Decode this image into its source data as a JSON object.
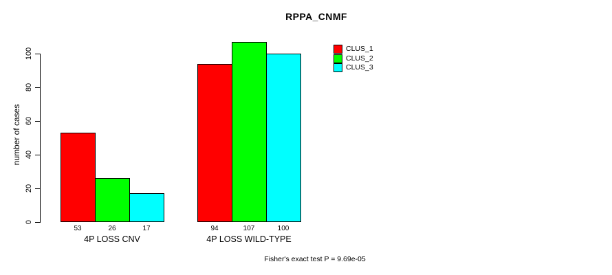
{
  "chart_data": {
    "type": "bar",
    "title": "RPPA_CNMF",
    "ylabel": "number of cases",
    "xlabel": "",
    "categories": [
      "4P LOSS CNV",
      "4P LOSS WILD-TYPE"
    ],
    "series": [
      {
        "name": "CLUS_1",
        "color": "#ff0000",
        "values": [
          53,
          94
        ]
      },
      {
        "name": "CLUS_2",
        "color": "#00ff00",
        "values": [
          26,
          107
        ]
      },
      {
        "name": "CLUS_3",
        "color": "#00ffff",
        "values": [
          17,
          100
        ]
      }
    ],
    "y_ticks": [
      0,
      20,
      40,
      60,
      80,
      100
    ],
    "ylim": [
      0,
      107
    ],
    "grid": false,
    "bar_value_labels_shown": true,
    "legend_position": "top-right",
    "legend_entries": [
      "CLUS_1",
      "CLUS_2",
      "CLUS_3"
    ],
    "annotation": "Fisher's exact test P = 9.69e-05"
  }
}
